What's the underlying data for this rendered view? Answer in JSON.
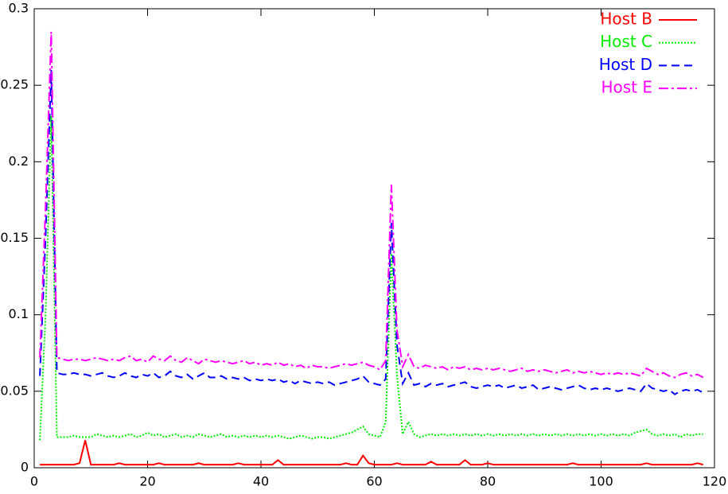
{
  "chart_data": {
    "type": "line",
    "x": [
      1,
      2,
      3,
      4,
      5,
      6,
      7,
      8,
      9,
      10,
      11,
      12,
      13,
      14,
      15,
      16,
      17,
      18,
      19,
      20,
      21,
      22,
      23,
      24,
      25,
      26,
      27,
      28,
      29,
      30,
      31,
      32,
      33,
      34,
      35,
      36,
      37,
      38,
      39,
      40,
      41,
      42,
      43,
      44,
      45,
      46,
      47,
      48,
      49,
      50,
      51,
      52,
      53,
      54,
      55,
      56,
      57,
      58,
      59,
      60,
      61,
      62,
      63,
      64,
      65,
      66,
      67,
      68,
      69,
      70,
      71,
      72,
      73,
      74,
      75,
      76,
      77,
      78,
      79,
      80,
      81,
      82,
      83,
      84,
      85,
      86,
      87,
      88,
      89,
      90,
      91,
      92,
      93,
      94,
      95,
      96,
      97,
      98,
      99,
      100,
      101,
      102,
      103,
      104,
      105,
      106,
      107,
      108,
      109,
      110,
      111,
      112,
      113,
      114,
      115,
      116,
      117,
      118
    ],
    "series": [
      {
        "name": "Host B",
        "color": "#ff0000",
        "line_style": "solid",
        "values": [
          0.002,
          0.002,
          0.002,
          0.002,
          0.002,
          0.002,
          0.002,
          0.003,
          0.018,
          0.002,
          0.002,
          0.002,
          0.002,
          0.002,
          0.003,
          0.002,
          0.002,
          0.002,
          0.002,
          0.002,
          0.002,
          0.003,
          0.002,
          0.002,
          0.002,
          0.002,
          0.002,
          0.002,
          0.003,
          0.002,
          0.002,
          0.002,
          0.002,
          0.002,
          0.002,
          0.003,
          0.002,
          0.002,
          0.002,
          0.002,
          0.002,
          0.002,
          0.005,
          0.002,
          0.002,
          0.002,
          0.002,
          0.002,
          0.002,
          0.002,
          0.002,
          0.002,
          0.002,
          0.002,
          0.003,
          0.002,
          0.002,
          0.008,
          0.003,
          0.002,
          0.002,
          0.002,
          0.002,
          0.003,
          0.002,
          0.002,
          0.002,
          0.002,
          0.002,
          0.004,
          0.002,
          0.002,
          0.002,
          0.002,
          0.002,
          0.005,
          0.002,
          0.002,
          0.002,
          0.003,
          0.002,
          0.002,
          0.002,
          0.002,
          0.002,
          0.002,
          0.002,
          0.002,
          0.002,
          0.002,
          0.002,
          0.002,
          0.002,
          0.002,
          0.003,
          0.002,
          0.002,
          0.002,
          0.002,
          0.002,
          0.002,
          0.002,
          0.002,
          0.002,
          0.002,
          0.002,
          0.002,
          0.003,
          0.002,
          0.002,
          0.002,
          0.002,
          0.002,
          0.002,
          0.002,
          0.002,
          0.003,
          0.002
        ]
      },
      {
        "name": "Host C",
        "color": "#00ee00",
        "line_style": "dotted",
        "values": [
          0.018,
          0.1,
          0.23,
          0.02,
          0.02,
          0.02,
          0.021,
          0.02,
          0.02,
          0.02,
          0.022,
          0.021,
          0.02,
          0.021,
          0.02,
          0.021,
          0.022,
          0.02,
          0.021,
          0.023,
          0.021,
          0.022,
          0.02,
          0.021,
          0.022,
          0.02,
          0.021,
          0.02,
          0.022,
          0.021,
          0.02,
          0.021,
          0.022,
          0.02,
          0.021,
          0.02,
          0.021,
          0.02,
          0.021,
          0.02,
          0.021,
          0.02,
          0.021,
          0.02,
          0.019,
          0.02,
          0.021,
          0.02,
          0.019,
          0.02,
          0.02,
          0.019,
          0.02,
          0.021,
          0.022,
          0.023,
          0.025,
          0.027,
          0.022,
          0.021,
          0.02,
          0.03,
          0.14,
          0.06,
          0.022,
          0.03,
          0.022,
          0.02,
          0.021,
          0.022,
          0.021,
          0.022,
          0.021,
          0.022,
          0.021,
          0.022,
          0.021,
          0.022,
          0.021,
          0.022,
          0.021,
          0.022,
          0.021,
          0.022,
          0.021,
          0.022,
          0.021,
          0.022,
          0.021,
          0.022,
          0.021,
          0.022,
          0.021,
          0.022,
          0.021,
          0.022,
          0.021,
          0.022,
          0.021,
          0.022,
          0.021,
          0.022,
          0.021,
          0.022,
          0.021,
          0.023,
          0.024,
          0.025,
          0.022,
          0.021,
          0.022,
          0.021,
          0.022,
          0.02,
          0.022,
          0.021,
          0.022,
          0.022
        ]
      },
      {
        "name": "Host D",
        "color": "#0000ff",
        "line_style": "dashed",
        "values": [
          0.06,
          0.15,
          0.26,
          0.062,
          0.061,
          0.061,
          0.062,
          0.061,
          0.061,
          0.06,
          0.061,
          0.062,
          0.06,
          0.059,
          0.06,
          0.062,
          0.06,
          0.059,
          0.061,
          0.06,
          0.062,
          0.059,
          0.06,
          0.063,
          0.06,
          0.059,
          0.061,
          0.058,
          0.06,
          0.062,
          0.059,
          0.059,
          0.06,
          0.058,
          0.059,
          0.058,
          0.059,
          0.057,
          0.058,
          0.057,
          0.058,
          0.057,
          0.058,
          0.056,
          0.057,
          0.055,
          0.057,
          0.056,
          0.055,
          0.056,
          0.055,
          0.056,
          0.054,
          0.055,
          0.056,
          0.057,
          0.058,
          0.06,
          0.056,
          0.055,
          0.054,
          0.058,
          0.16,
          0.08,
          0.055,
          0.062,
          0.054,
          0.055,
          0.053,
          0.055,
          0.054,
          0.055,
          0.053,
          0.054,
          0.055,
          0.056,
          0.053,
          0.052,
          0.053,
          0.054,
          0.053,
          0.054,
          0.052,
          0.053,
          0.054,
          0.052,
          0.053,
          0.054,
          0.051,
          0.052,
          0.053,
          0.052,
          0.051,
          0.052,
          0.053,
          0.054,
          0.052,
          0.051,
          0.052,
          0.051,
          0.052,
          0.051,
          0.05,
          0.051,
          0.052,
          0.051,
          0.05,
          0.055,
          0.052,
          0.051,
          0.05,
          0.051,
          0.048,
          0.05,
          0.051,
          0.05,
          0.051,
          0.049
        ]
      },
      {
        "name": "Host E",
        "color": "#ff00ff",
        "line_style": "dashdot",
        "values": [
          0.072,
          0.17,
          0.285,
          0.072,
          0.071,
          0.07,
          0.071,
          0.071,
          0.07,
          0.071,
          0.072,
          0.071,
          0.07,
          0.071,
          0.07,
          0.072,
          0.073,
          0.07,
          0.071,
          0.069,
          0.073,
          0.071,
          0.07,
          0.073,
          0.07,
          0.069,
          0.072,
          0.07,
          0.068,
          0.071,
          0.07,
          0.069,
          0.07,
          0.069,
          0.068,
          0.069,
          0.07,
          0.068,
          0.069,
          0.067,
          0.068,
          0.067,
          0.069,
          0.067,
          0.068,
          0.066,
          0.067,
          0.065,
          0.067,
          0.066,
          0.066,
          0.065,
          0.066,
          0.067,
          0.068,
          0.067,
          0.068,
          0.069,
          0.067,
          0.066,
          0.064,
          0.07,
          0.185,
          0.09,
          0.066,
          0.074,
          0.066,
          0.065,
          0.067,
          0.066,
          0.065,
          0.066,
          0.064,
          0.066,
          0.065,
          0.066,
          0.064,
          0.065,
          0.064,
          0.065,
          0.064,
          0.065,
          0.064,
          0.063,
          0.064,
          0.065,
          0.063,
          0.064,
          0.063,
          0.064,
          0.063,
          0.062,
          0.063,
          0.064,
          0.062,
          0.063,
          0.062,
          0.063,
          0.062,
          0.061,
          0.062,
          0.061,
          0.062,
          0.061,
          0.062,
          0.061,
          0.06,
          0.065,
          0.063,
          0.061,
          0.062,
          0.06,
          0.059,
          0.061,
          0.062,
          0.06,
          0.061,
          0.059
        ]
      }
    ],
    "xlim": [
      0,
      120
    ],
    "xticks": [
      0,
      20,
      40,
      60,
      80,
      100,
      120
    ],
    "ylim": [
      0,
      0.3
    ],
    "yticks": [
      0,
      0.05,
      0.1,
      0.15,
      0.2,
      0.25,
      0.3
    ],
    "grid": false,
    "legend_position": "top right"
  }
}
